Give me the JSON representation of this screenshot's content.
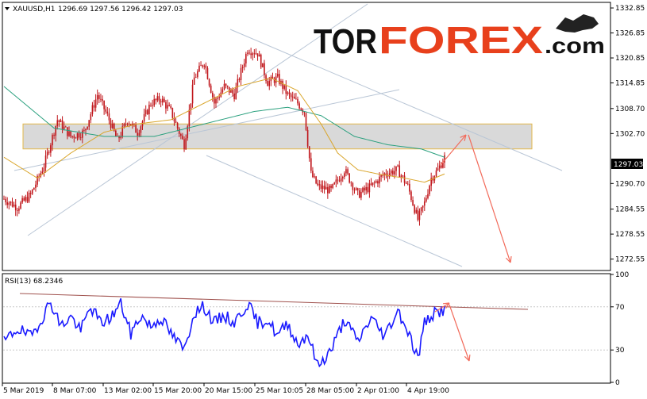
{
  "header": {
    "symbol_label": "XAUUSD,H1",
    "quote_values": "1296.69 1297.56 1296.42 1297.03",
    "rsi_label": "RSI(13) 68.2346"
  },
  "logo": {
    "part1": "TOR",
    "part2": "FOREX",
    "part3": ".com",
    "part1_color": "#111111",
    "part2_color": "#e8401c",
    "part3_color": "#111111"
  },
  "colors": {
    "candle": "#c0161b",
    "ma_fast": "#d9a52a",
    "ma_slow": "#2aa07e",
    "channel": "#b9c6d6",
    "zone_fill": "#d9d9d9",
    "zone_border": "#e3b84a",
    "forecast_arrow": "#f26b5b",
    "rsi_line": "#1a1aff",
    "rsi_trend": "#a0524e",
    "grid": "#c8c8c8"
  },
  "chart_data": [
    {
      "type": "candlestick",
      "title": "XAUUSD,H1",
      "price_ticks": [
        "1332.85",
        "1326.85",
        "1320.85",
        "1314.85",
        "1308.70",
        "1302.70",
        "1290.70",
        "1284.55",
        "1278.55",
        "1272.55"
      ],
      "current_price": "1297.03",
      "x_ticks": [
        "5 Mar 2019",
        "8 Mar 07:00",
        "13 Mar 02:00",
        "15 Mar 20:00",
        "20 Mar 15:00",
        "25 Mar 10:05",
        "28 Mar 05:00",
        "2 Apr 01:00",
        "4 Apr 19:00"
      ],
      "ylim": [
        1270,
        1334
      ],
      "resistance_zone": [
        1299,
        1305
      ],
      "close_path": [
        [
          0,
          1287
        ],
        [
          8,
          1285
        ],
        [
          16,
          1288
        ],
        [
          24,
          1295
        ],
        [
          32,
          1306
        ],
        [
          40,
          1302
        ],
        [
          48,
          1303
        ],
        [
          56,
          1312
        ],
        [
          62,
          1307
        ],
        [
          68,
          1301
        ],
        [
          74,
          1306
        ],
        [
          80,
          1303
        ],
        [
          88,
          1310
        ],
        [
          94,
          1311
        ],
        [
          100,
          1308
        ],
        [
          108,
          1300
        ],
        [
          114,
          1316
        ],
        [
          120,
          1320
        ],
        [
          126,
          1310
        ],
        [
          132,
          1314
        ],
        [
          138,
          1312
        ],
        [
          146,
          1323
        ],
        [
          152,
          1322
        ],
        [
          158,
          1315
        ],
        [
          164,
          1316
        ],
        [
          170,
          1312
        ],
        [
          176,
          1310
        ],
        [
          180,
          1308
        ],
        [
          184,
          1293
        ],
        [
          188,
          1290
        ],
        [
          196,
          1289
        ],
        [
          204,
          1294
        ],
        [
          212,
          1288
        ],
        [
          220,
          1290
        ],
        [
          228,
          1293
        ],
        [
          236,
          1294
        ],
        [
          242,
          1290
        ],
        [
          248,
          1282
        ],
        [
          252,
          1286
        ],
        [
          256,
          1292
        ],
        [
          260,
          1294
        ],
        [
          264,
          1297
        ]
      ],
      "ma_fast_path": [
        [
          0,
          1297
        ],
        [
          20,
          1292
        ],
        [
          40,
          1298
        ],
        [
          60,
          1303
        ],
        [
          80,
          1305
        ],
        [
          100,
          1306
        ],
        [
          120,
          1310
        ],
        [
          140,
          1314
        ],
        [
          160,
          1316
        ],
        [
          176,
          1313
        ],
        [
          190,
          1305
        ],
        [
          200,
          1298
        ],
        [
          212,
          1294
        ],
        [
          224,
          1293
        ],
        [
          240,
          1292
        ],
        [
          252,
          1291
        ],
        [
          264,
          1293
        ]
      ],
      "ma_slow_path": [
        [
          0,
          1314
        ],
        [
          30,
          1304
        ],
        [
          60,
          1302
        ],
        [
          90,
          1302
        ],
        [
          120,
          1305
        ],
        [
          150,
          1308
        ],
        [
          170,
          1309
        ],
        [
          190,
          1307
        ],
        [
          210,
          1302
        ],
        [
          230,
          1300
        ],
        [
          250,
          1299
        ],
        [
          264,
          1297
        ]
      ]
    },
    {
      "type": "line",
      "title": "RSI(13) 68.2346",
      "value_ticks": [
        "100",
        "70",
        "30",
        "0"
      ],
      "ylim": [
        0,
        100
      ],
      "level_lines": [
        70,
        30
      ],
      "rsi_path": [
        [
          0,
          37
        ],
        [
          8,
          50
        ],
        [
          16,
          42
        ],
        [
          24,
          63
        ],
        [
          28,
          75
        ],
        [
          34,
          52
        ],
        [
          40,
          61
        ],
        [
          46,
          48
        ],
        [
          52,
          70
        ],
        [
          58,
          55
        ],
        [
          64,
          60
        ],
        [
          70,
          73
        ],
        [
          76,
          45
        ],
        [
          82,
          62
        ],
        [
          88,
          52
        ],
        [
          94,
          60
        ],
        [
          100,
          45
        ],
        [
          108,
          30
        ],
        [
          114,
          65
        ],
        [
          120,
          70
        ],
        [
          126,
          55
        ],
        [
          132,
          62
        ],
        [
          138,
          55
        ],
        [
          146,
          73
        ],
        [
          152,
          55
        ],
        [
          158,
          58
        ],
        [
          164,
          43
        ],
        [
          170,
          55
        ],
        [
          176,
          35
        ],
        [
          182,
          45
        ],
        [
          188,
          15
        ],
        [
          196,
          30
        ],
        [
          204,
          58
        ],
        [
          212,
          38
        ],
        [
          220,
          60
        ],
        [
          228,
          43
        ],
        [
          236,
          67
        ],
        [
          242,
          48
        ],
        [
          248,
          22
        ],
        [
          252,
          55
        ],
        [
          256,
          62
        ],
        [
          260,
          65
        ],
        [
          264,
          68
        ]
      ]
    }
  ]
}
